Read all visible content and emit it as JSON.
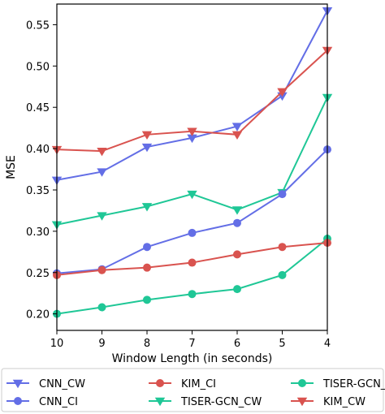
{
  "chart_data": {
    "type": "line",
    "xlabel": "Window Length (in seconds)",
    "ylabel": "MSE",
    "x": [
      10,
      9,
      8,
      7,
      6,
      5,
      4
    ],
    "xlim": [
      10,
      4
    ],
    "ylim": [
      0.18,
      0.575
    ],
    "x_ticks": [
      "10",
      "9",
      "8",
      "7",
      "6",
      "5",
      "4"
    ],
    "y_ticks": [
      0.2,
      0.25,
      0.3,
      0.35,
      0.4,
      0.45,
      0.5,
      0.55
    ],
    "y_tick_labels": [
      "0.20",
      "0.25",
      "0.30",
      "0.35",
      "0.40",
      "0.45",
      "0.50",
      "0.55"
    ],
    "grid": false,
    "legend_position": "bottom",
    "series": [
      {
        "name": "CNN_CW",
        "color": "#636EE6",
        "marker": "triangle-down",
        "values": [
          0.362,
          0.372,
          0.402,
          0.413,
          0.427,
          0.464,
          0.567
        ]
      },
      {
        "name": "TISER-GCN_CW",
        "color": "#1FC796",
        "marker": "triangle-down",
        "values": [
          0.308,
          0.319,
          0.33,
          0.345,
          0.326,
          0.347,
          0.462
        ]
      },
      {
        "name": "CNN_CI",
        "color": "#636EE6",
        "marker": "circle",
        "values": [
          0.249,
          0.254,
          0.281,
          0.298,
          0.31,
          0.345,
          0.399
        ]
      },
      {
        "name": "TISER-GCN_CI",
        "color": "#1FC796",
        "marker": "circle",
        "values": [
          0.2,
          0.208,
          0.217,
          0.224,
          0.23,
          0.247,
          0.291
        ]
      },
      {
        "name": "KIM_CI",
        "color": "#D9534F",
        "marker": "circle",
        "values": [
          0.247,
          0.253,
          0.256,
          0.262,
          0.272,
          0.281,
          0.286
        ]
      },
      {
        "name": "KIM_CW",
        "color": "#D9534F",
        "marker": "triangle-down",
        "values": [
          0.399,
          0.397,
          0.417,
          0.421,
          0.417,
          0.469,
          0.519
        ]
      }
    ]
  },
  "legend_order": [
    0,
    2,
    4,
    1,
    3,
    5
  ]
}
